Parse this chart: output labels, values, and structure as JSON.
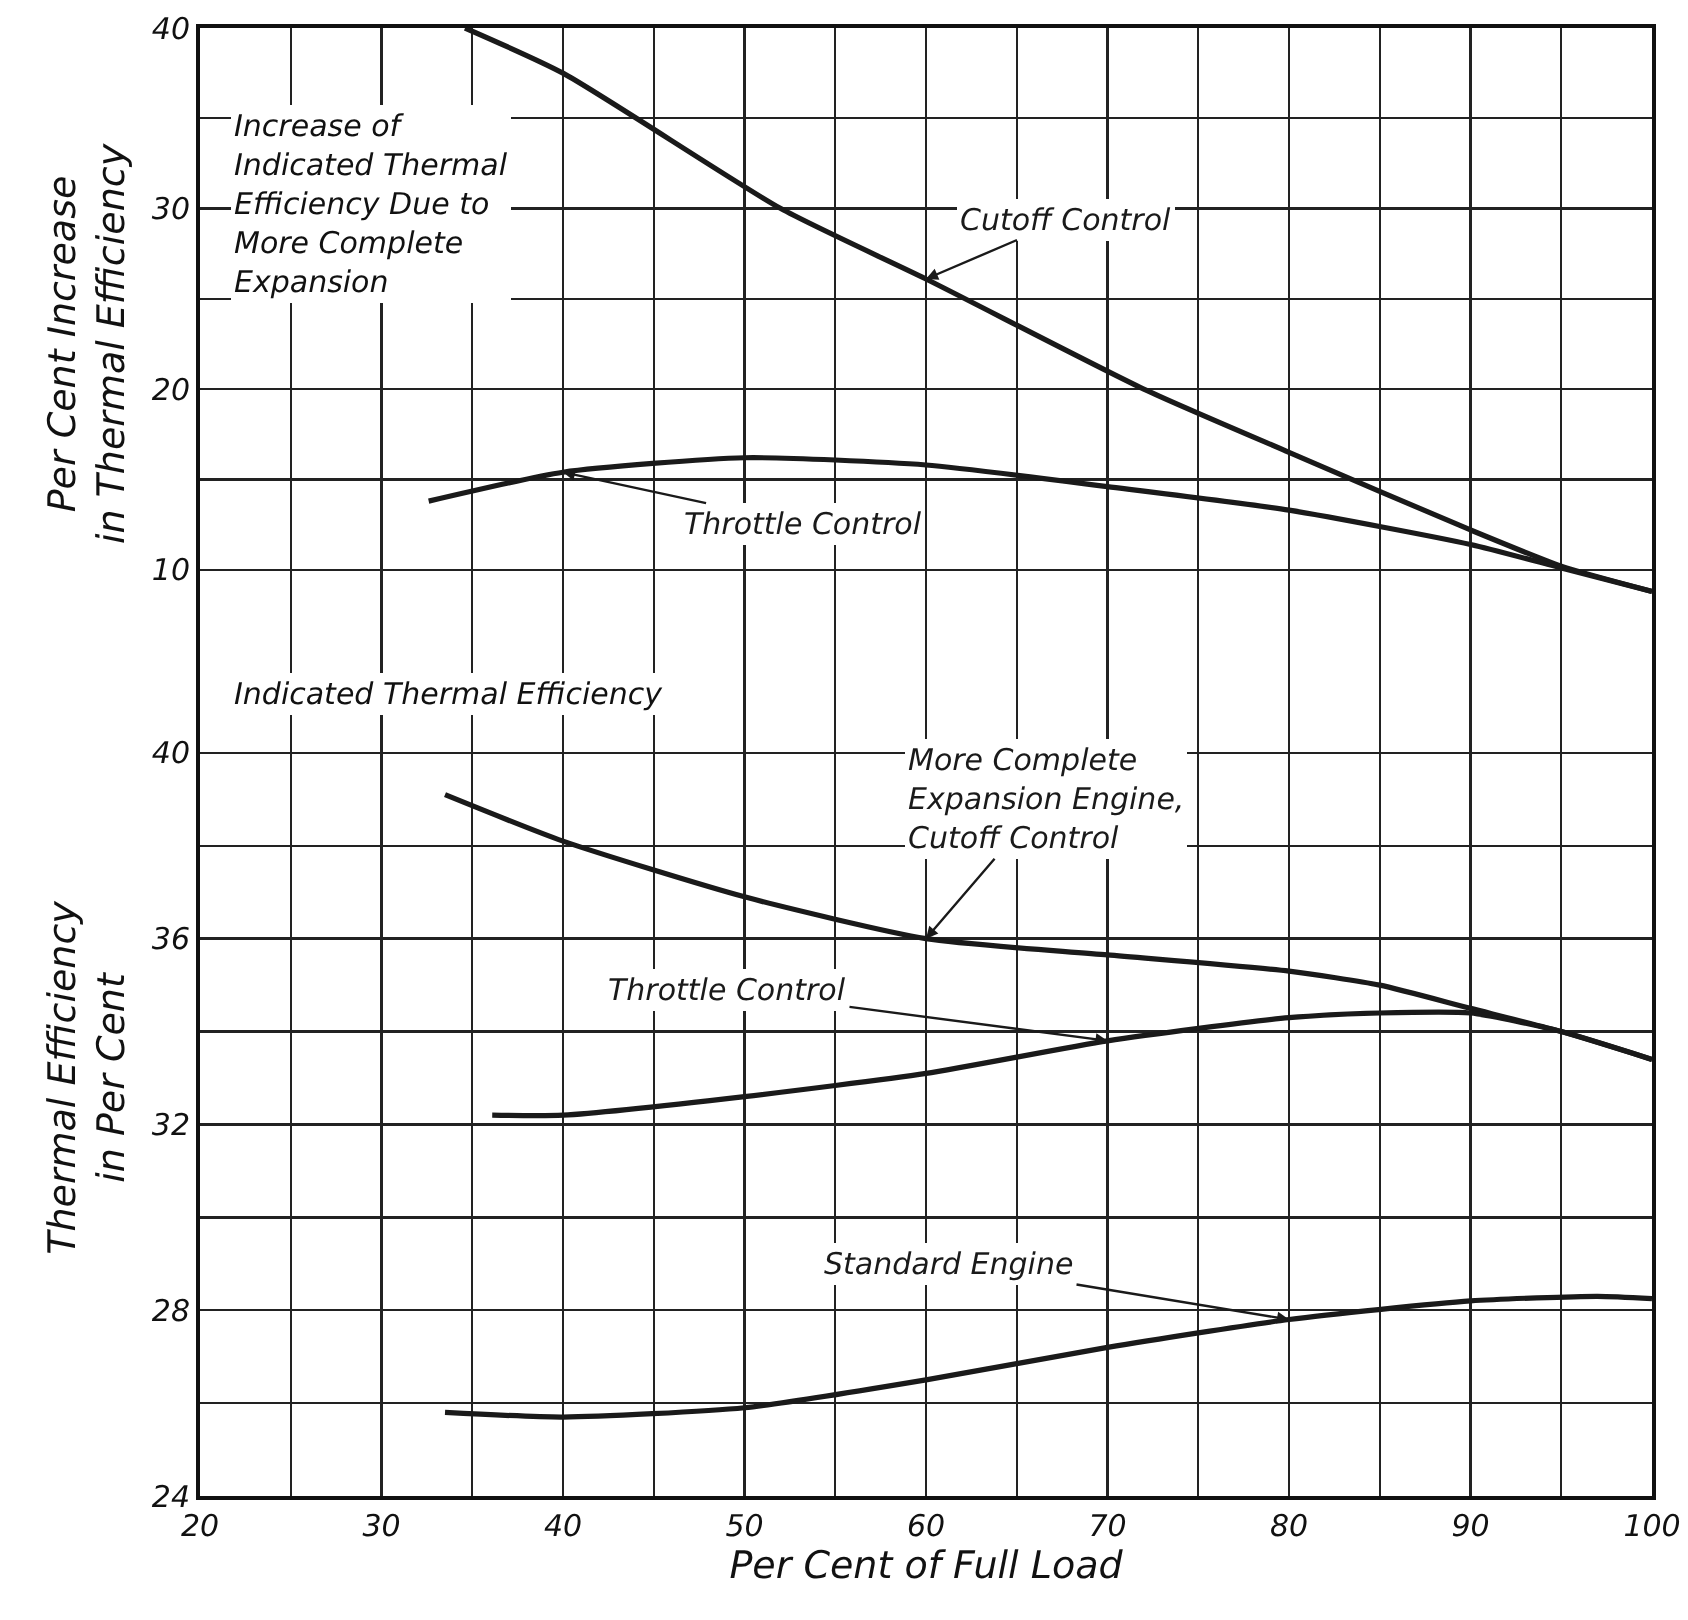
{
  "chart_data": [
    {
      "type": "line",
      "title": "Increase of\nIndicated Thermal\nEfficiency Due to\nMore Complete\nExpansion",
      "ylabel": "Per Cent Increase\nin Thermal Efficiency",
      "xlim": [
        20,
        100
      ],
      "xticks": [
        20,
        {
          "value": 25,
          "label": null
        },
        30,
        {
          "value": 35,
          "label": null
        },
        40,
        {
          "value": 45,
          "label": null
        },
        50,
        {
          "value": 55,
          "label": null
        },
        60,
        {
          "value": 65,
          "label": null
        },
        70,
        {
          "value": 75,
          "label": null
        },
        80,
        {
          "value": 85,
          "label": null
        },
        90,
        {
          "value": 95,
          "label": null
        },
        100
      ],
      "ylim": [
        5,
        40
      ],
      "yticks": [
        10,
        {
          "value": 15,
          "label": null
        },
        20,
        {
          "value": 25,
          "label": null
        },
        30,
        {
          "value": 35,
          "label": null
        },
        40
      ],
      "tick_labels": "y",
      "grid": true,
      "legend": false,
      "marker": "none",
      "line_style": "solid",
      "series": [
        {
          "name": "Cutoff Control",
          "color": "#1a1a1a",
          "x": [
            34.6,
            40,
            52,
            60,
            72,
            80,
            90,
            95,
            100
          ],
          "values": [
            40,
            37.5,
            30,
            26.1,
            20,
            16.5,
            12.2,
            10.2,
            8.8
          ]
        },
        {
          "name": "Throttle Control",
          "color": "#1a1a1a",
          "x": [
            32.6,
            40,
            50,
            60,
            70,
            80,
            90,
            95,
            100
          ],
          "values": [
            13.8,
            15.4,
            16.2,
            15.8,
            14.6,
            13.3,
            11.4,
            10.1,
            8.8
          ]
        }
      ]
    },
    {
      "type": "line",
      "title": "Indicated Thermal Efficiency",
      "xlabel": "Per Cent of Full Load",
      "ylabel": "Thermal Efficiency\nin Per Cent",
      "xlim": [
        20,
        100
      ],
      "xticks": [
        20,
        {
          "value": 25,
          "label": null
        },
        30,
        {
          "value": 35,
          "label": null
        },
        40,
        {
          "value": 45,
          "label": null
        },
        50,
        {
          "value": 55,
          "label": null
        },
        60,
        {
          "value": 65,
          "label": null
        },
        70,
        {
          "value": 75,
          "label": null
        },
        80,
        {
          "value": 85,
          "label": null
        },
        90,
        {
          "value": 95,
          "label": null
        },
        100
      ],
      "ylim": [
        24,
        42
      ],
      "yticks": [
        24,
        {
          "value": 26,
          "label": null
        },
        28,
        {
          "value": 30,
          "label": null
        },
        32,
        {
          "value": 34,
          "label": null
        },
        36,
        {
          "value": 38,
          "label": null
        },
        40
      ],
      "grid": true,
      "legend": false,
      "marker": "none",
      "line_style": "solid",
      "series": [
        {
          "name": "More Complete\nExpansion Engine,\nCutoff Control",
          "color": "#1a1a1a",
          "x": [
            33.5,
            40,
            50,
            60,
            70,
            80,
            85,
            90,
            95,
            100
          ],
          "values": [
            39.1,
            38.1,
            36.9,
            36.0,
            35.65,
            35.3,
            35.0,
            34.5,
            34.0,
            33.4
          ]
        },
        {
          "name": "Throttle Control",
          "color": "#1a1a1a",
          "x": [
            36.1,
            40,
            50,
            60,
            70,
            80,
            85,
            90,
            95,
            100
          ],
          "values": [
            32.2,
            32.2,
            32.6,
            33.1,
            33.8,
            34.3,
            34.4,
            34.4,
            34.0,
            33.4
          ]
        },
        {
          "name": "Standard Engine",
          "color": "#1a1a1a",
          "x": [
            33.5,
            40,
            50,
            60,
            70,
            80,
            90,
            97,
            100
          ],
          "values": [
            25.8,
            25.7,
            25.9,
            26.5,
            27.2,
            27.8,
            28.2,
            28.3,
            28.25
          ]
        }
      ]
    }
  ]
}
